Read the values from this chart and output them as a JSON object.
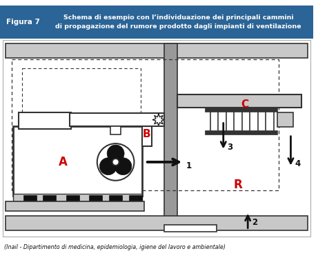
{
  "title_left": "Figura 7",
  "title_right": "Schema di esempio con l’individuazione dei principali cammini\ndi propagazione del rumore prodotto dagli impianti di ventilazione",
  "header_bg": "#2b6496",
  "header_text_color": "#ffffff",
  "bg_color": "#ffffff",
  "caption": "(Inail - Dipartimento di medicina, epidemiologia, igiene del lavoro e ambientale)",
  "red_color": "#cc0000",
  "dark_gray": "#333333",
  "light_gray": "#c8c8c8",
  "mid_gray": "#888888",
  "dark": "#111111",
  "wall_gray": "#999999"
}
